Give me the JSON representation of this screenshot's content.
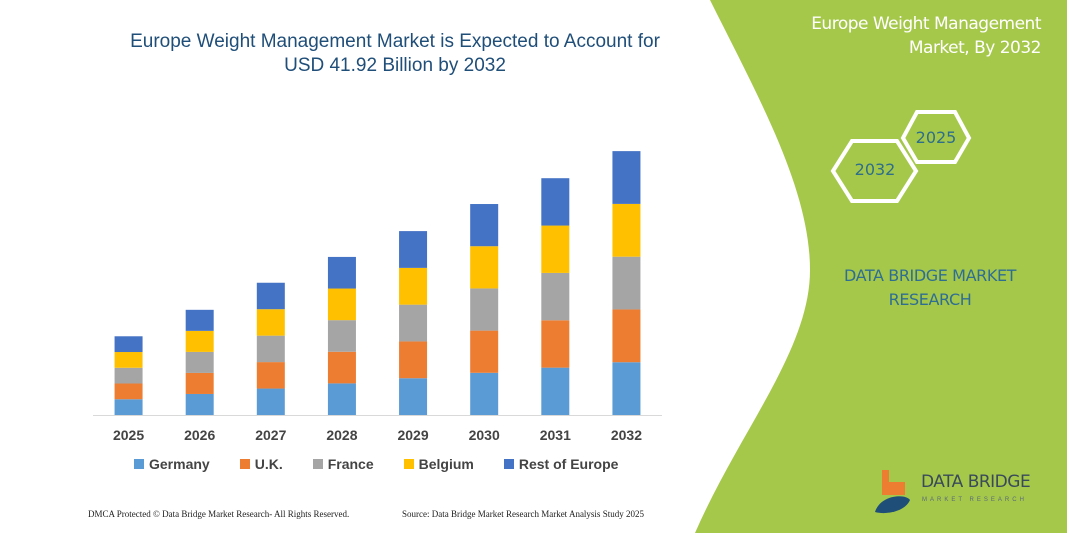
{
  "title": "Europe Weight Management Market is Expected to Account for USD 41.92 Billion by 2032",
  "title_line1": "Europe Weight Management Market is Expected to Account for",
  "title_line2": "USD 41.92 Billion by 2032",
  "side_panel": {
    "title_line1": "Europe Weight Management",
    "title_line2": "Market, By 2032",
    "hex_years": [
      "2032",
      "2025"
    ],
    "brand_line1": "DATA BRIDGE MARKET",
    "brand_line2": "RESEARCH",
    "logo_text": "DATA BRIDGE",
    "logo_subtext": "MARKET RESEARCH",
    "green": "#a5c84b"
  },
  "footer": {
    "left": "DMCA Protected © Data Bridge Market Research- All Rights Reserved.",
    "right": "Source: Data Bridge Market Research  Market Analysis Study 2025"
  },
  "chart_data": {
    "type": "bar",
    "stacked": true,
    "title": "Europe Weight Management Market is Expected to Account for USD 41.92 Billion by 2032",
    "categories": [
      "2025",
      "2026",
      "2027",
      "2028",
      "2029",
      "2030",
      "2031",
      "2032"
    ],
    "series": [
      {
        "name": "Germany",
        "color": "#5b9bd5",
        "values": [
          2.5,
          3.34,
          4.2,
          5.02,
          5.84,
          6.7,
          7.52,
          8.38
        ]
      },
      {
        "name": "U.K.",
        "color": "#ed7d31",
        "values": [
          2.5,
          3.34,
          4.2,
          5.02,
          5.84,
          6.7,
          7.52,
          8.38
        ]
      },
      {
        "name": "France",
        "color": "#a5a5a5",
        "values": [
          2.5,
          3.34,
          4.2,
          5.02,
          5.84,
          6.7,
          7.52,
          8.38
        ]
      },
      {
        "name": "Belgium",
        "color": "#ffc000",
        "values": [
          2.5,
          3.34,
          4.2,
          5.02,
          5.84,
          6.7,
          7.52,
          8.38
        ]
      },
      {
        "name": "Rest of Europe",
        "color": "#4472c4",
        "values": [
          2.5,
          3.34,
          4.2,
          5.02,
          5.84,
          6.7,
          7.52,
          8.38
        ]
      }
    ],
    "ylim": [
      0,
      45
    ],
    "y_axis_shown": false,
    "grid": false,
    "legend_position": "bottom"
  }
}
